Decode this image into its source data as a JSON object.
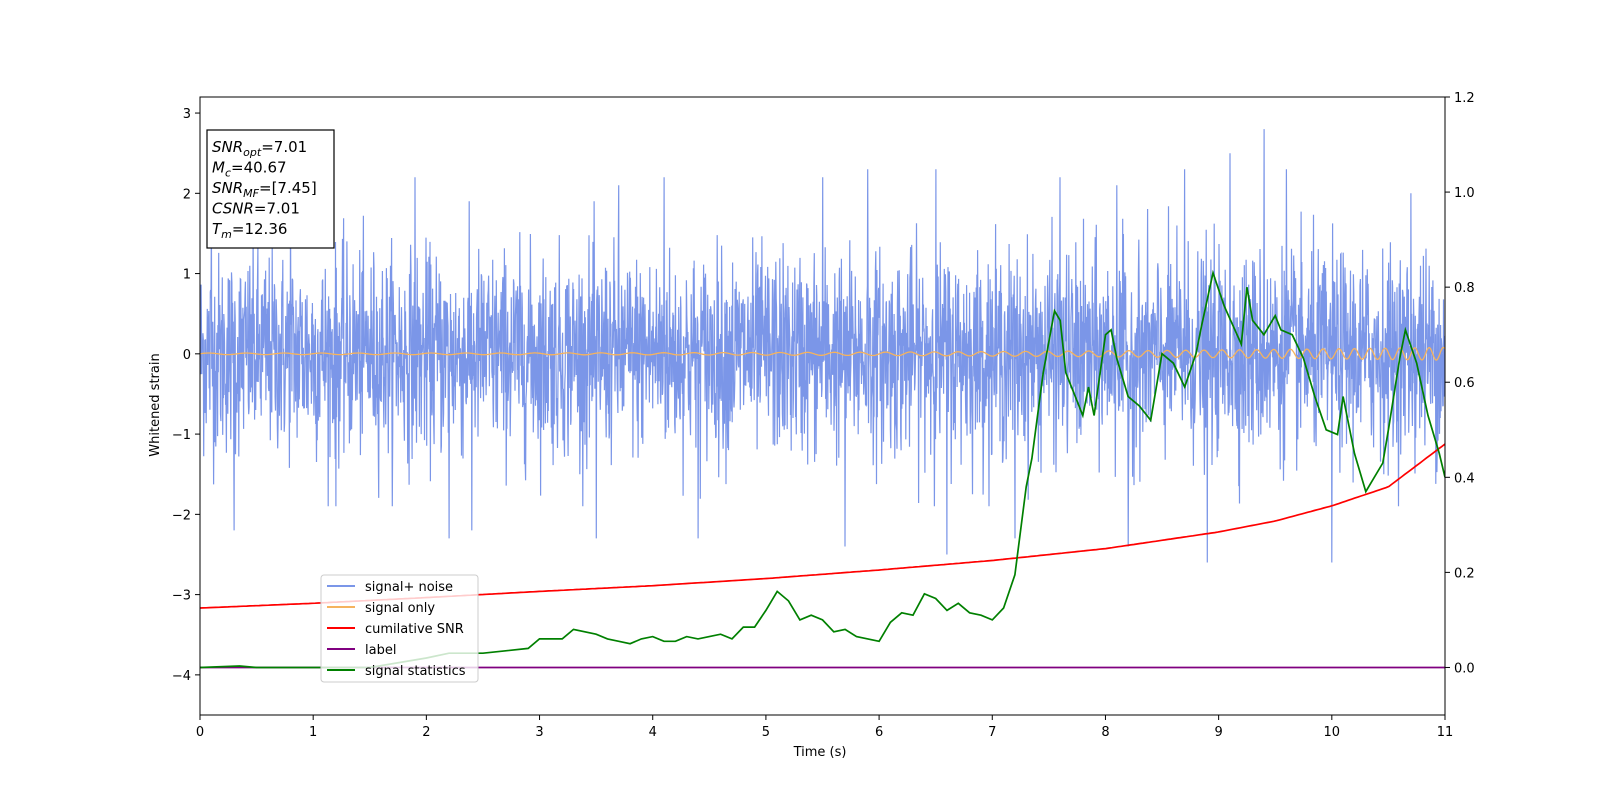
{
  "chart_data": {
    "type": "line",
    "xlabel": "Time (s)",
    "ylabel": "Whitened strain",
    "xlim": [
      0,
      11
    ],
    "ylim": [
      -4.5,
      3.2
    ],
    "y2lim": [
      -0.1,
      1.2
    ],
    "x_ticks": [
      "0",
      "1",
      "2",
      "3",
      "4",
      "5",
      "6",
      "7",
      "8",
      "9",
      "10",
      "11"
    ],
    "y_ticks": [
      "3",
      "2",
      "1",
      "0",
      "−1",
      "−2",
      "−3",
      "−4"
    ],
    "y2_ticks": [
      "1.2",
      "1.0",
      "0.8",
      "0.6",
      "0.4",
      "0.2",
      "0.0"
    ],
    "grid": false,
    "legend_position": "lower-left",
    "info_box": {
      "lines": [
        {
          "main": "SNR",
          "sub": "opt",
          "value": "=7.01"
        },
        {
          "main": "M",
          "sub": "c",
          "value": "=40.67"
        },
        {
          "main": "SNR",
          "sub": "MF",
          "value": "=[7.45]"
        },
        {
          "main": "CSNR",
          "sub": "",
          "value": "=7.01"
        },
        {
          "main": "T",
          "sub": "m",
          "value": "=12.36"
        }
      ]
    },
    "series": [
      {
        "name": "signal+ noise",
        "color": "#7b96e8",
        "axis": "left",
        "noise_envelope": {
          "typical_amplitude": 1.0,
          "peak_max": 2.8,
          "peak_min": -2.7
        },
        "peaks": [
          {
            "x": 0.1,
            "y": 1.7
          },
          {
            "x": 0.3,
            "y": -2.2
          },
          {
            "x": 0.8,
            "y": 1.8
          },
          {
            "x": 1.2,
            "y": 2.0
          },
          {
            "x": 1.2,
            "y": -1.9
          },
          {
            "x": 1.9,
            "y": 2.2
          },
          {
            "x": 2.2,
            "y": -2.3
          },
          {
            "x": 2.4,
            "y": -2.2
          },
          {
            "x": 3.5,
            "y": -2.3
          },
          {
            "x": 3.7,
            "y": 2.1
          },
          {
            "x": 4.1,
            "y": 2.2
          },
          {
            "x": 4.4,
            "y": -2.3
          },
          {
            "x": 5.5,
            "y": 2.2
          },
          {
            "x": 5.7,
            "y": -2.4
          },
          {
            "x": 5.9,
            "y": 2.3
          },
          {
            "x": 6.5,
            "y": 2.3
          },
          {
            "x": 6.6,
            "y": -2.5
          },
          {
            "x": 7.2,
            "y": -2.3
          },
          {
            "x": 7.6,
            "y": 2.2
          },
          {
            "x": 8.1,
            "y": 2.1
          },
          {
            "x": 8.2,
            "y": -2.4
          },
          {
            "x": 8.7,
            "y": 2.3
          },
          {
            "x": 8.9,
            "y": -2.6
          },
          {
            "x": 9.1,
            "y": 2.5
          },
          {
            "x": 9.4,
            "y": 2.8
          },
          {
            "x": 9.6,
            "y": 2.3
          },
          {
            "x": 10.0,
            "y": 2.3
          },
          {
            "x": 10.0,
            "y": -2.6
          },
          {
            "x": 10.7,
            "y": 2.0
          }
        ]
      },
      {
        "name": "signal only",
        "color": "#f5b35e",
        "axis": "left",
        "chirp": {
          "amplitude_start": 0.01,
          "amplitude_end": 0.08,
          "freq_start_hz": 3,
          "freq_end_hz": 8
        }
      },
      {
        "name": "cumilative SNR",
        "color": "#ff0000",
        "axis": "right",
        "x": [
          0,
          1,
          2,
          3,
          4,
          5,
          6,
          7,
          8,
          9,
          9.5,
          10,
          10.5,
          11
        ],
        "y": [
          0.125,
          0.135,
          0.147,
          0.16,
          0.172,
          0.187,
          0.205,
          0.225,
          0.25,
          0.285,
          0.308,
          0.34,
          0.38,
          0.47
        ]
      },
      {
        "name": "label",
        "color": "#800080",
        "axis": "right",
        "x": [
          0,
          11
        ],
        "y": [
          0.0,
          0.0
        ]
      },
      {
        "name": "signal statistics",
        "color": "#008000",
        "axis": "right",
        "x": [
          0,
          0.35,
          0.5,
          1.0,
          1.5,
          2.0,
          2.2,
          2.5,
          2.7,
          2.9,
          3.0,
          3.2,
          3.3,
          3.5,
          3.6,
          3.7,
          3.8,
          3.9,
          4.0,
          4.1,
          4.2,
          4.3,
          4.4,
          4.5,
          4.6,
          4.7,
          4.8,
          4.9,
          5.0,
          5.1,
          5.2,
          5.3,
          5.4,
          5.5,
          5.6,
          5.7,
          5.8,
          5.9,
          6.0,
          6.1,
          6.2,
          6.3,
          6.4,
          6.5,
          6.6,
          6.7,
          6.8,
          6.9,
          7.0,
          7.1,
          7.2,
          7.3,
          7.35,
          7.45,
          7.55,
          7.6,
          7.65,
          7.8,
          7.85,
          7.9,
          8.0,
          8.05,
          8.1,
          8.2,
          8.3,
          8.4,
          8.5,
          8.6,
          8.7,
          8.8,
          8.85,
          8.95,
          9.05,
          9.2,
          9.25,
          9.3,
          9.4,
          9.5,
          9.55,
          9.65,
          9.75,
          9.85,
          9.95,
          10.05,
          10.1,
          10.2,
          10.3,
          10.45,
          10.5,
          10.6,
          10.65,
          10.75,
          10.85,
          10.95,
          11
        ],
        "y": [
          0.0,
          0.003,
          0.0,
          0.0,
          0.0,
          0.02,
          0.03,
          0.03,
          0.035,
          0.04,
          0.06,
          0.06,
          0.08,
          0.07,
          0.06,
          0.055,
          0.05,
          0.06,
          0.065,
          0.055,
          0.055,
          0.065,
          0.06,
          0.065,
          0.07,
          0.06,
          0.085,
          0.085,
          0.12,
          0.16,
          0.14,
          0.1,
          0.11,
          0.1,
          0.075,
          0.08,
          0.065,
          0.06,
          0.055,
          0.095,
          0.115,
          0.11,
          0.155,
          0.145,
          0.12,
          0.135,
          0.115,
          0.11,
          0.1,
          0.125,
          0.195,
          0.38,
          0.44,
          0.62,
          0.75,
          0.73,
          0.62,
          0.53,
          0.59,
          0.53,
          0.7,
          0.71,
          0.65,
          0.57,
          0.55,
          0.52,
          0.66,
          0.64,
          0.59,
          0.66,
          0.72,
          0.83,
          0.76,
          0.68,
          0.8,
          0.73,
          0.7,
          0.74,
          0.71,
          0.7,
          0.65,
          0.57,
          0.5,
          0.49,
          0.57,
          0.45,
          0.37,
          0.43,
          0.5,
          0.65,
          0.71,
          0.64,
          0.53,
          0.45,
          0.4
        ]
      }
    ]
  }
}
